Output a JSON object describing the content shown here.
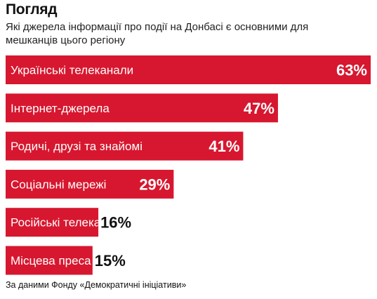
{
  "chart_data": {
    "type": "bar",
    "orientation": "horizontal",
    "title": "Погляд",
    "subtitle": "Які джерела інформації про події на Донбасі є основними для мешканців цього регіону",
    "categories": [
      "Українські телеканали",
      "Інтернет-джерела",
      "Родичі, друзі та знайомі",
      "Соціальні мережі",
      "Російські телеканали",
      "Місцева преса"
    ],
    "values": [
      63,
      47,
      41,
      29,
      16,
      15
    ],
    "value_labels": [
      "63%",
      "47%",
      "41%",
      "29%",
      "16%",
      "15%"
    ],
    "unit": "%",
    "xlim": [
      0,
      63
    ],
    "grid": false,
    "bar_color": "#d7172f",
    "source": "За даними Фонду «Демократичні ініціативи»"
  }
}
